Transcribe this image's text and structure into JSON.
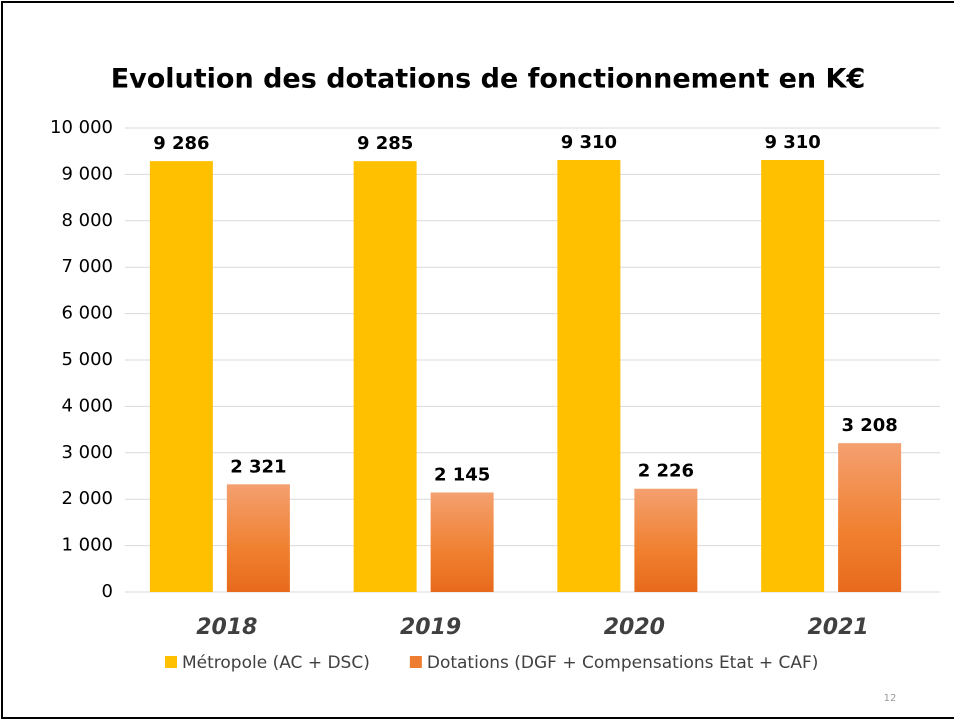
{
  "chart_data": {
    "type": "bar",
    "title": "Evolution des dotations de fonctionnement en K€",
    "categories": [
      "2018",
      "2019",
      "2020",
      "2021"
    ],
    "series": [
      {
        "name": "Métropole (AC + DSC)",
        "color": "#ffc000",
        "values": [
          9286,
          9285,
          9310,
          9310
        ],
        "value_labels": [
          "9 286",
          "9 285",
          "9 310",
          "9 310"
        ]
      },
      {
        "name": "Dotations (DGF + Compensations Etat + CAF)",
        "color": "#ed7d31",
        "values": [
          2321,
          2145,
          2226,
          3208
        ],
        "value_labels": [
          "2 321",
          "2 145",
          "2 226",
          "3 208"
        ]
      }
    ],
    "ylim": [
      0,
      10000
    ],
    "yticks": [
      0,
      {
        "value": 1000,
        "label": "1 000"
      },
      {
        "value": 2000,
        "label": "2 000"
      },
      {
        "value": 3000,
        "label": "3 000"
      },
      {
        "value": 4000,
        "label": "4 000"
      },
      {
        "value": 5000,
        "label": "5 000"
      },
      {
        "value": 6000,
        "label": "6 000"
      },
      {
        "value": 7000,
        "label": "7 000"
      },
      {
        "value": 8000,
        "label": "8 000"
      },
      {
        "value": 9000,
        "label": "9 000"
      },
      {
        "value": 10000,
        "label": "10 000"
      }
    ],
    "grid": true,
    "legend": "bottom"
  },
  "slide_number": "12"
}
